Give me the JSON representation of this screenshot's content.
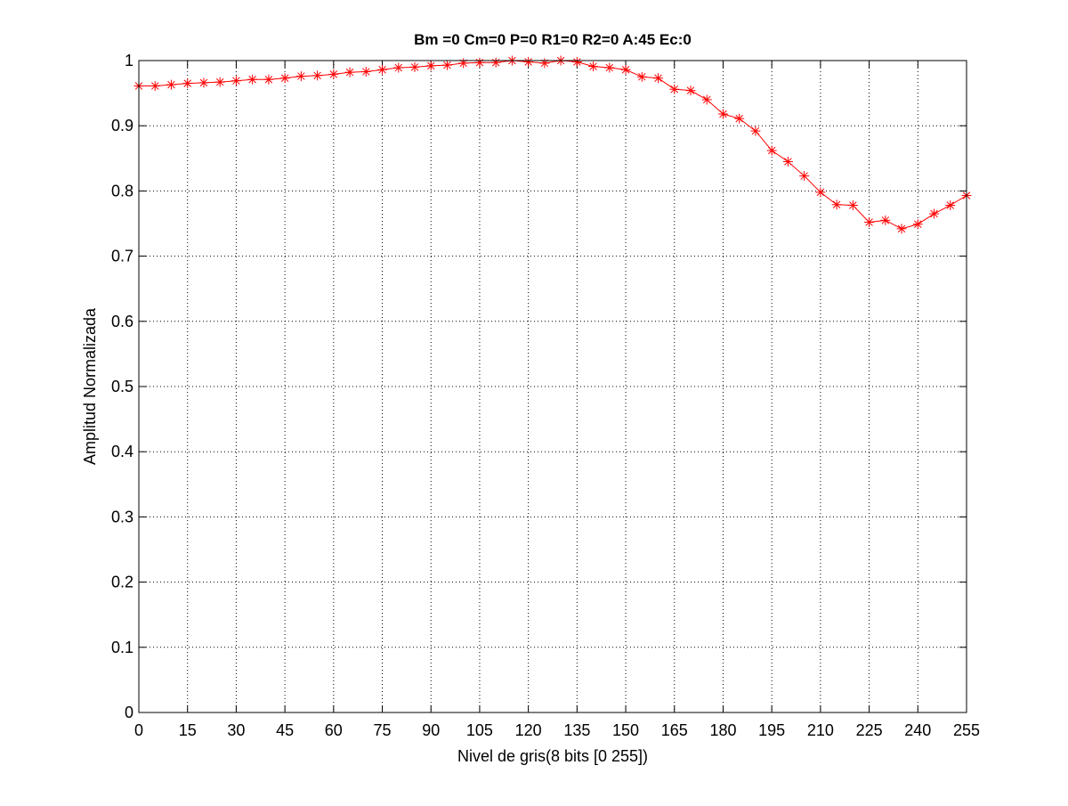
{
  "chart_data": {
    "type": "line",
    "title": "Bm =0  Cm=0  P=0  R1=0  R2=0  A:45  Ec:0",
    "xlabel": "Nivel de gris(8 bits [0 255])",
    "ylabel": "Amplitud Normalizada",
    "xlim": [
      0,
      255
    ],
    "ylim": [
      0,
      1
    ],
    "xticks": [
      0,
      15,
      30,
      45,
      60,
      75,
      90,
      105,
      120,
      135,
      150,
      165,
      180,
      195,
      210,
      225,
      240,
      255
    ],
    "yticks": [
      0,
      0.1,
      0.2,
      0.3,
      0.4,
      0.5,
      0.6,
      0.7,
      0.8,
      0.9,
      1
    ],
    "xtick_labels": [
      "0",
      "15",
      "30",
      "45",
      "60",
      "75",
      "90",
      "105",
      "120",
      "135",
      "150",
      "165",
      "180",
      "195",
      "210",
      "225",
      "240",
      "255"
    ],
    "ytick_labels": [
      "0",
      "0.1",
      "0.2",
      "0.3",
      "0.4",
      "0.5",
      "0.6",
      "0.7",
      "0.8",
      "0.9",
      "1"
    ],
    "grid": true,
    "grid_style": "dotted",
    "legend": "none",
    "series": [
      {
        "color": "#ff0000",
        "marker": "asterisk",
        "x": [
          0,
          5,
          10,
          15,
          20,
          25,
          30,
          35,
          40,
          45,
          50,
          55,
          60,
          65,
          70,
          75,
          80,
          85,
          90,
          95,
          100,
          105,
          110,
          115,
          120,
          125,
          130,
          135,
          140,
          145,
          150,
          155,
          160,
          165,
          170,
          175,
          180,
          185,
          190,
          195,
          200,
          205,
          210,
          215,
          220,
          225,
          230,
          235,
          240,
          245,
          250,
          255
        ],
        "y": [
          0.961,
          0.961,
          0.963,
          0.965,
          0.966,
          0.967,
          0.969,
          0.971,
          0.971,
          0.973,
          0.976,
          0.977,
          0.979,
          0.982,
          0.983,
          0.986,
          0.989,
          0.99,
          0.992,
          0.993,
          0.996,
          0.997,
          0.997,
          1.0,
          0.998,
          0.996,
          1.0,
          0.998,
          0.991,
          0.989,
          0.986,
          0.975,
          0.973,
          0.956,
          0.954,
          0.94,
          0.918,
          0.911,
          0.892,
          0.862,
          0.845,
          0.823,
          0.798,
          0.779,
          0.778,
          0.752,
          0.755,
          0.742,
          0.749,
          0.765,
          0.778,
          0.793
        ]
      }
    ]
  }
}
